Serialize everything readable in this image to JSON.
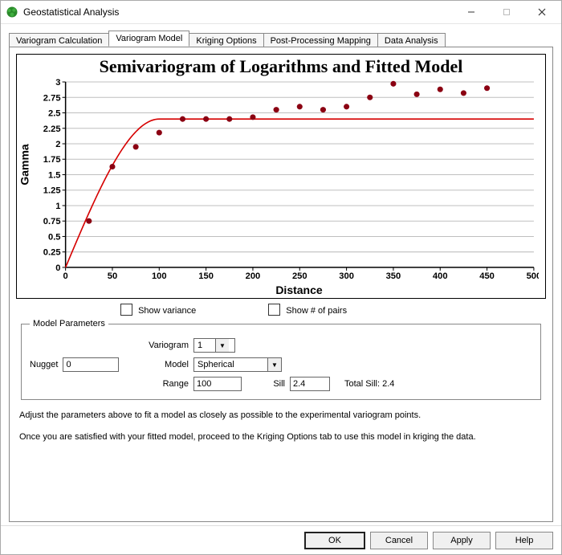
{
  "window": {
    "title": "Geostatistical Analysis"
  },
  "icon": {
    "fill": "#2a8a2a"
  },
  "tabs": {
    "items": [
      {
        "label": "Variogram Calculation"
      },
      {
        "label": "Variogram Model"
      },
      {
        "label": "Kriging Options"
      },
      {
        "label": "Post-Processing Mapping"
      },
      {
        "label": "Data Analysis"
      }
    ],
    "active_index": 1
  },
  "chart": {
    "type": "scatter+line",
    "title": "Semivariogram of Logarithms and Fitted Model",
    "xlabel": "Distance",
    "ylabel": "Gamma",
    "background_color": "#ffffff",
    "grid_color": "#bfbfbf",
    "axis_color": "#000000",
    "title_fontsize": 22,
    "label_fontsize": 14,
    "tick_fontsize": 11,
    "xlim": [
      0,
      500
    ],
    "ylim": [
      0,
      3
    ],
    "xtick_step": 50,
    "ytick_step": 0.25,
    "points": {
      "x": [
        25,
        50,
        75,
        100,
        125,
        150,
        175,
        200,
        225,
        250,
        275,
        300,
        325,
        350,
        375,
        400,
        425,
        450
      ],
      "y": [
        0.75,
        1.63,
        1.95,
        2.18,
        2.4,
        2.4,
        2.4,
        2.43,
        2.55,
        2.6,
        2.55,
        2.6,
        2.75,
        2.97,
        2.8,
        2.88,
        2.82,
        2.9
      ],
      "marker_color": "#8b0012",
      "marker_radius": 3.5,
      "marker": "circle"
    },
    "fit_curve": {
      "type": "spherical",
      "nugget": 0,
      "range": 100,
      "sill": 2.4,
      "line_color": "#d60000",
      "line_width": 1.6
    }
  },
  "checks": {
    "show_variance": {
      "label": "Show variance",
      "checked": false
    },
    "show_pairs": {
      "label": "Show # of pairs",
      "checked": false
    }
  },
  "model_params": {
    "legend": "Model Parameters",
    "nugget": {
      "label": "Nugget",
      "value": "0"
    },
    "variogram_dd": {
      "label": "Variogram",
      "value": "1"
    },
    "model_dd": {
      "label": "Model",
      "value": "Spherical"
    },
    "range": {
      "label": "Range",
      "value": "100"
    },
    "sill": {
      "label": "Sill",
      "value": "2.4"
    },
    "total_sill": {
      "label": "Total Sill:",
      "value": "2.4"
    }
  },
  "instructions": {
    "p1": "Adjust the parameters above to fit a model as closely as possible to the experimental variogram points.",
    "p2": "Once you are satisfied with your fitted model, proceed to the Kriging Options tab to use this model in kriging the data."
  },
  "buttons": {
    "ok": "OK",
    "cancel": "Cancel",
    "apply": "Apply",
    "help": "Help"
  }
}
